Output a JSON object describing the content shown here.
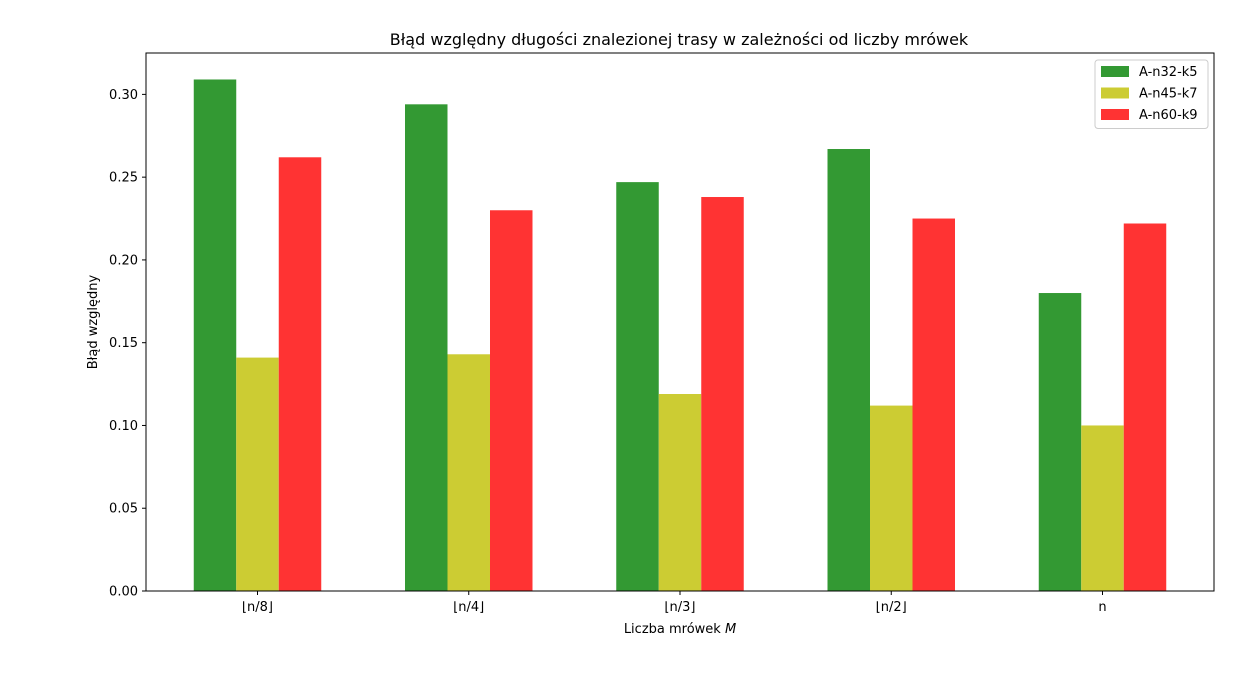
{
  "chart_data": {
    "type": "bar",
    "title": "Błąd względny długości znalezionej trasy w zależności od liczby mrówek",
    "xlabel": "Liczba mrówek",
    "xlabel_var": "M",
    "ylabel": "Błąd względny",
    "categories": [
      "⌊n/8⌋",
      "⌊n/4⌋",
      "⌊n/3⌋",
      "⌊n/2⌋",
      "n"
    ],
    "ylim": [
      0,
      0.325
    ],
    "yticks": [
      0.0,
      0.05,
      0.1,
      0.15,
      0.2,
      0.25,
      0.3
    ],
    "ytick_labels": [
      "0.00",
      "0.05",
      "0.10",
      "0.15",
      "0.20",
      "0.25",
      "0.30"
    ],
    "grid": false,
    "legend_position": "top-right",
    "series": [
      {
        "name": "A-n32-k5",
        "color": "#339933",
        "values": [
          0.309,
          0.294,
          0.247,
          0.267,
          0.18
        ]
      },
      {
        "name": "A-n45-k7",
        "color": "#cccc33",
        "values": [
          0.141,
          0.143,
          0.119,
          0.112,
          0.1
        ]
      },
      {
        "name": "A-n60-k9",
        "color": "#ff3333",
        "values": [
          0.262,
          0.23,
          0.238,
          0.225,
          0.222
        ]
      }
    ]
  }
}
